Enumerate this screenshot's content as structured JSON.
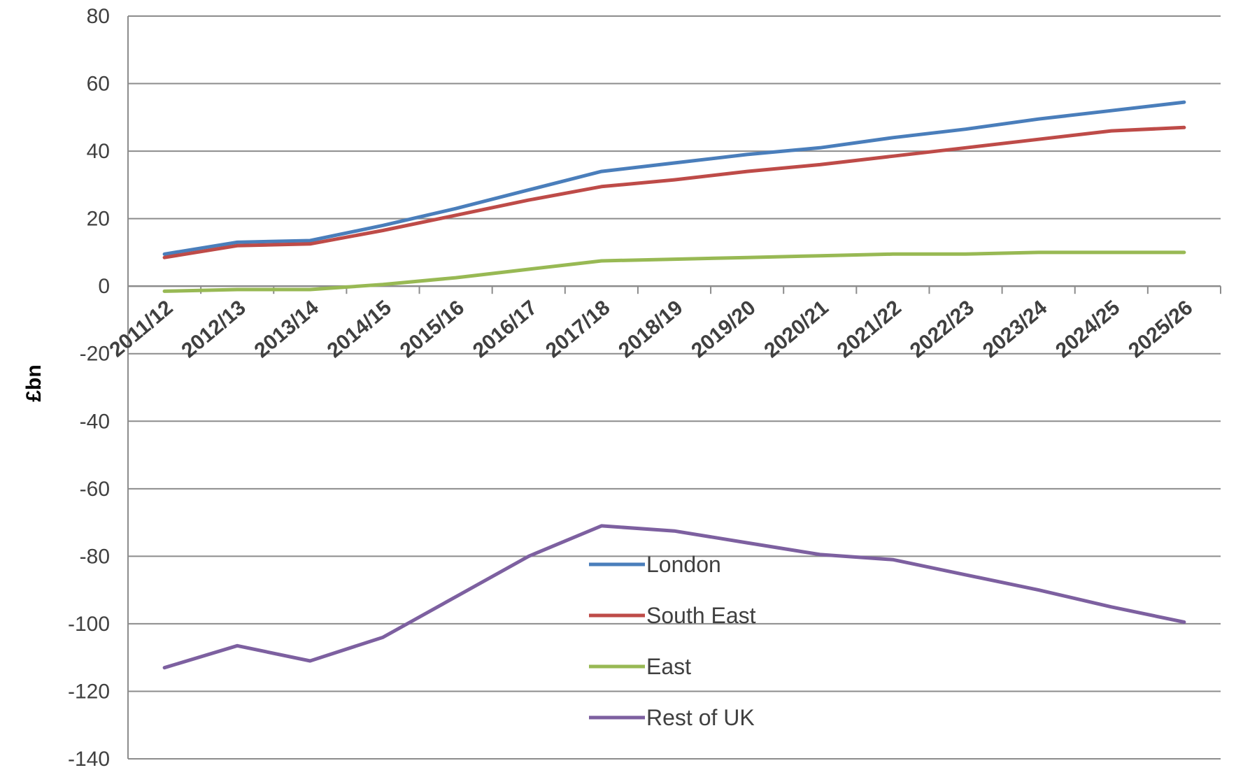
{
  "chart_data": {
    "type": "line",
    "ylabel": "£bn",
    "xlabel": "",
    "ylim": [
      -140,
      80
    ],
    "yticks": [
      80,
      60,
      40,
      20,
      0,
      -20,
      -40,
      -60,
      -80,
      -100,
      -120,
      -140
    ],
    "categories": [
      "2011/12",
      "2012/13",
      "2013/14",
      "2014/15",
      "2015/16",
      "2016/17",
      "2017/18",
      "2018/19",
      "2019/20",
      "2020/21",
      "2021/22",
      "2022/23",
      "2023/24",
      "2024/25",
      "2025/26"
    ],
    "grid": true,
    "legend_position": "center-bottom",
    "series": [
      {
        "name": "London",
        "color": "#4a7ebb",
        "values": [
          9.5,
          13,
          13.5,
          18,
          23,
          28.5,
          34,
          36.5,
          39,
          41,
          44,
          46.5,
          49.5,
          52,
          54.5
        ]
      },
      {
        "name": "South East",
        "color": "#be4b48",
        "values": [
          8.5,
          12,
          12.5,
          16.5,
          21,
          25.5,
          29.5,
          31.5,
          34,
          36,
          38.5,
          41,
          43.5,
          46,
          47
        ]
      },
      {
        "name": "East",
        "color": "#98b954",
        "values": [
          -1.5,
          -1,
          -1,
          0.5,
          2.5,
          5,
          7.5,
          8,
          8.5,
          9,
          9.5,
          9.5,
          10,
          10,
          10
        ]
      },
      {
        "name": "Rest of UK",
        "color": "#7d60a0",
        "values": [
          -113,
          -106.5,
          -111,
          -104,
          -92,
          -80,
          -71,
          -72.5,
          -76,
          -79.5,
          -81,
          -85.5,
          -90,
          -95,
          -99.5
        ]
      }
    ]
  }
}
